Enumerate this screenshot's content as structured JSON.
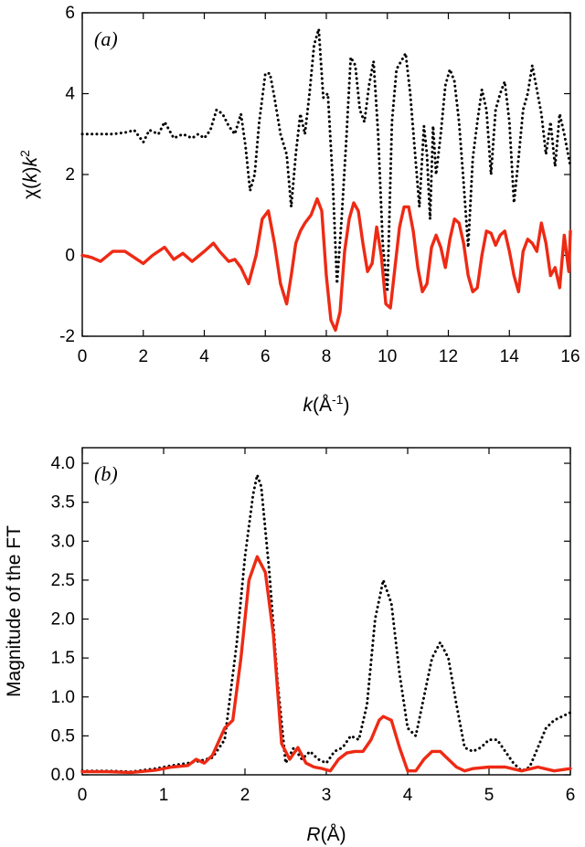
{
  "chart_data": [
    {
      "type": "line",
      "panel_label": "(a)",
      "xlabel": "k(Å-1)",
      "ylabel": "χ(k)k2",
      "xlim": [
        0,
        16
      ],
      "ylim": [
        -2,
        6
      ],
      "xticks": [
        "0",
        "2",
        "4",
        "6",
        "8",
        "10",
        "12",
        "14",
        "16"
      ],
      "yticks": [
        "-2",
        "0",
        "2",
        "4",
        "6"
      ],
      "series": [
        {
          "style": "dotted",
          "color": "#000000",
          "x": [
            0,
            0.5,
            1,
            1.5,
            1.7,
            2,
            2.2,
            2.5,
            2.7,
            3,
            3.3,
            3.6,
            3.8,
            4,
            4.2,
            4.4,
            4.6,
            4.8,
            5,
            5.2,
            5.35,
            5.5,
            5.65,
            5.8,
            6,
            6.15,
            6.3,
            6.5,
            6.7,
            6.85,
            7,
            7.15,
            7.3,
            7.45,
            7.6,
            7.75,
            7.9,
            8.05,
            8.2,
            8.35,
            8.5,
            8.65,
            8.8,
            8.95,
            9.1,
            9.25,
            9.4,
            9.55,
            9.7,
            9.85,
            10,
            10.15,
            10.3,
            10.45,
            10.6,
            10.75,
            10.9,
            11.05,
            11.2,
            11.3,
            11.4,
            11.5,
            11.6,
            11.75,
            11.9,
            12.05,
            12.2,
            12.35,
            12.5,
            12.65,
            12.8,
            12.95,
            13.1,
            13.25,
            13.4,
            13.55,
            13.7,
            13.85,
            14,
            14.15,
            14.3,
            14.45,
            14.6,
            14.75,
            14.9,
            15.05,
            15.2,
            15.35,
            15.5,
            15.65,
            15.8,
            16
          ],
          "y": [
            3.0,
            3.0,
            3.0,
            3.05,
            3.1,
            2.8,
            3.1,
            3.0,
            3.3,
            2.9,
            3.0,
            2.9,
            3.0,
            2.9,
            3.1,
            3.6,
            3.5,
            3.2,
            3.0,
            3.5,
            2.7,
            1.6,
            2.0,
            3.3,
            4.5,
            4.5,
            3.9,
            3.0,
            2.5,
            1.2,
            2.5,
            3.5,
            3.0,
            4.0,
            5.2,
            5.6,
            3.9,
            4.0,
            2.0,
            -0.7,
            0.9,
            2.8,
            4.9,
            4.7,
            3.6,
            3.3,
            4.2,
            4.8,
            3.0,
            0.3,
            -0.9,
            3.3,
            4.6,
            4.8,
            5.0,
            4.0,
            2.6,
            1.2,
            3.2,
            2.5,
            0.9,
            3.2,
            2.0,
            3.0,
            4.2,
            4.6,
            4.3,
            3.3,
            1.8,
            0.2,
            2.4,
            3.3,
            4.1,
            3.6,
            2.0,
            3.6,
            4.0,
            4.3,
            3.3,
            1.3,
            2.4,
            3.6,
            4.0,
            4.7,
            4.1,
            3.5,
            2.5,
            3.3,
            2.2,
            3.5,
            3.0,
            2.2
          ]
        },
        {
          "style": "solid",
          "color": "#ee2a14",
          "x": [
            0,
            0.3,
            0.6,
            1,
            1.4,
            1.7,
            2,
            2.3,
            2.7,
            3,
            3.3,
            3.6,
            4,
            4.3,
            4.5,
            4.8,
            5,
            5.2,
            5.45,
            5.7,
            5.9,
            6.1,
            6.3,
            6.5,
            6.7,
            6.85,
            7,
            7.15,
            7.3,
            7.5,
            7.7,
            7.85,
            8,
            8.15,
            8.3,
            8.45,
            8.6,
            8.75,
            8.9,
            9.05,
            9.2,
            9.35,
            9.5,
            9.65,
            9.8,
            9.95,
            10.1,
            10.25,
            10.4,
            10.55,
            10.7,
            10.85,
            11,
            11.15,
            11.3,
            11.45,
            11.6,
            11.75,
            11.9,
            12.05,
            12.2,
            12.35,
            12.5,
            12.65,
            12.8,
            12.95,
            13.1,
            13.25,
            13.4,
            13.55,
            13.7,
            13.85,
            14,
            14.15,
            14.3,
            14.45,
            14.6,
            14.75,
            14.9,
            15.05,
            15.2,
            15.35,
            15.5,
            15.65,
            15.8,
            15.95,
            16
          ],
          "y": [
            0,
            -0.05,
            -0.15,
            0.1,
            0.1,
            -0.05,
            -0.2,
            0,
            0.2,
            -0.1,
            0.05,
            -0.15,
            0.1,
            0.3,
            0.1,
            -0.15,
            -0.1,
            -0.3,
            -0.7,
            0,
            0.9,
            1.1,
            0.3,
            -0.7,
            -1.2,
            -0.5,
            0.3,
            0.6,
            0.8,
            1.0,
            1.4,
            1.1,
            -0.5,
            -1.6,
            -1.85,
            -1.4,
            0.1,
            0.9,
            1.3,
            1.1,
            0.3,
            -0.4,
            -0.2,
            0.7,
            0.0,
            -1.2,
            -1.3,
            -0.3,
            0.7,
            1.2,
            1.2,
            0.6,
            -0.3,
            -0.9,
            -0.7,
            0.2,
            0.5,
            0.2,
            -0.3,
            0.4,
            0.9,
            0.8,
            0.3,
            -0.5,
            -0.9,
            -0.8,
            0.0,
            0.6,
            0.55,
            0.25,
            0.5,
            0.6,
            0.1,
            -0.5,
            -0.9,
            0.1,
            0.4,
            0.3,
            0.1,
            0.8,
            0.3,
            -0.5,
            -0.3,
            -0.8,
            0.5,
            -0.4,
            0.6
          ]
        }
      ]
    },
    {
      "type": "line",
      "panel_label": "(b)",
      "xlabel": "R(Å)",
      "ylabel": "Magnitude of the FT",
      "xlim": [
        0,
        6
      ],
      "ylim": [
        0,
        4.2
      ],
      "xticks": [
        "0",
        "1",
        "2",
        "3",
        "4",
        "5",
        "6"
      ],
      "yticks": [
        "0.0",
        "0.5",
        "1.0",
        "1.5",
        "2.0",
        "2.5",
        "3.0",
        "3.5",
        "4.0"
      ],
      "series": [
        {
          "style": "dotted",
          "color": "#000000",
          "x": [
            0,
            0.3,
            0.6,
            0.9,
            1.1,
            1.3,
            1.45,
            1.6,
            1.75,
            1.9,
            2.0,
            2.1,
            2.15,
            2.2,
            2.3,
            2.4,
            2.5,
            2.6,
            2.7,
            2.8,
            2.9,
            3.0,
            3.1,
            3.2,
            3.3,
            3.4,
            3.5,
            3.6,
            3.7,
            3.8,
            3.9,
            4.0,
            4.1,
            4.2,
            4.3,
            4.4,
            4.5,
            4.6,
            4.7,
            4.8,
            4.9,
            5.0,
            5.1,
            5.2,
            5.3,
            5.4,
            5.5,
            5.6,
            5.7,
            5.8,
            5.9,
            6.0
          ],
          "y": [
            0.05,
            0.05,
            0.04,
            0.08,
            0.12,
            0.15,
            0.18,
            0.22,
            0.45,
            1.7,
            2.8,
            3.6,
            3.85,
            3.7,
            2.6,
            1.2,
            0.15,
            0.35,
            0.2,
            0.3,
            0.2,
            0.15,
            0.3,
            0.35,
            0.5,
            0.45,
            0.9,
            2.0,
            2.5,
            2.2,
            1.3,
            0.6,
            0.5,
            1.0,
            1.5,
            1.7,
            1.5,
            0.9,
            0.35,
            0.3,
            0.35,
            0.45,
            0.45,
            0.3,
            0.15,
            0.05,
            0.1,
            0.35,
            0.6,
            0.7,
            0.75,
            0.8
          ]
        },
        {
          "style": "solid",
          "color": "#ee2a14",
          "x": [
            0,
            0.3,
            0.6,
            0.9,
            1.1,
            1.3,
            1.4,
            1.5,
            1.6,
            1.75,
            1.85,
            1.95,
            2.05,
            2.15,
            2.25,
            2.35,
            2.45,
            2.55,
            2.65,
            2.75,
            2.85,
            2.95,
            3.05,
            3.15,
            3.25,
            3.35,
            3.45,
            3.55,
            3.65,
            3.7,
            3.8,
            3.9,
            4.0,
            4.1,
            4.2,
            4.3,
            4.4,
            4.5,
            4.6,
            4.7,
            4.8,
            5.0,
            5.2,
            5.4,
            5.6,
            5.8,
            6.0
          ],
          "y": [
            0.04,
            0.04,
            0.03,
            0.06,
            0.1,
            0.12,
            0.2,
            0.15,
            0.25,
            0.6,
            0.7,
            1.5,
            2.5,
            2.8,
            2.6,
            1.8,
            0.4,
            0.2,
            0.35,
            0.15,
            0.1,
            0.08,
            0.05,
            0.2,
            0.28,
            0.3,
            0.3,
            0.45,
            0.7,
            0.75,
            0.7,
            0.35,
            0.05,
            0.05,
            0.2,
            0.3,
            0.3,
            0.2,
            0.1,
            0.05,
            0.08,
            0.1,
            0.1,
            0.05,
            0.1,
            0.05,
            0.08
          ]
        }
      ]
    }
  ]
}
